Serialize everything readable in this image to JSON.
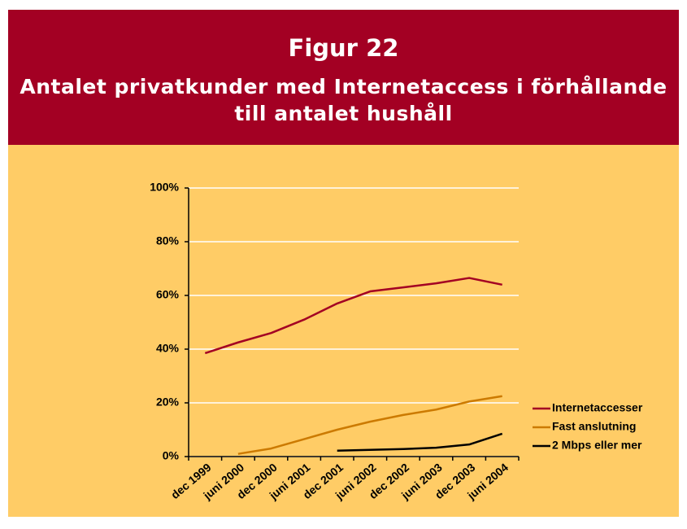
{
  "chart_data": {
    "type": "line",
    "title": "Figur 22",
    "subtitle": "Antalet privatkunder med Internetaccess i förhållande till antalet hushåll",
    "categories": [
      "dec 1999",
      "juni 2000",
      "dec 2000",
      "juni 2001",
      "dec 2001",
      "juni 2002",
      "dec 2002",
      "juni 2003",
      "dec 2003",
      "juni 2004"
    ],
    "series": [
      {
        "name": "Internetaccesser",
        "color": "#a30023",
        "values": [
          38.5,
          42.5,
          46,
          51,
          57,
          61.5,
          63,
          64.5,
          66.5,
          64
        ]
      },
      {
        "name": "Fast anslutning",
        "color": "#cc7a00",
        "values": [
          null,
          1,
          3,
          6.5,
          10,
          13,
          15.5,
          17.5,
          20.5,
          22.5
        ]
      },
      {
        "name": "2 Mbps eller mer",
        "color": "#000000",
        "values": [
          null,
          null,
          null,
          null,
          2.2,
          2.5,
          2.8,
          3.3,
          4.5,
          8.5
        ]
      }
    ],
    "ylim": [
      0,
      100
    ],
    "yticks": [
      {
        "value": 0,
        "label": "0%"
      },
      {
        "value": 20,
        "label": "20%"
      },
      {
        "value": 40,
        "label": "40%"
      },
      {
        "value": 60,
        "label": "60%"
      },
      {
        "value": 80,
        "label": "80%"
      },
      {
        "value": 100,
        "label": "100%"
      }
    ],
    "grid": true,
    "legend": "right"
  }
}
